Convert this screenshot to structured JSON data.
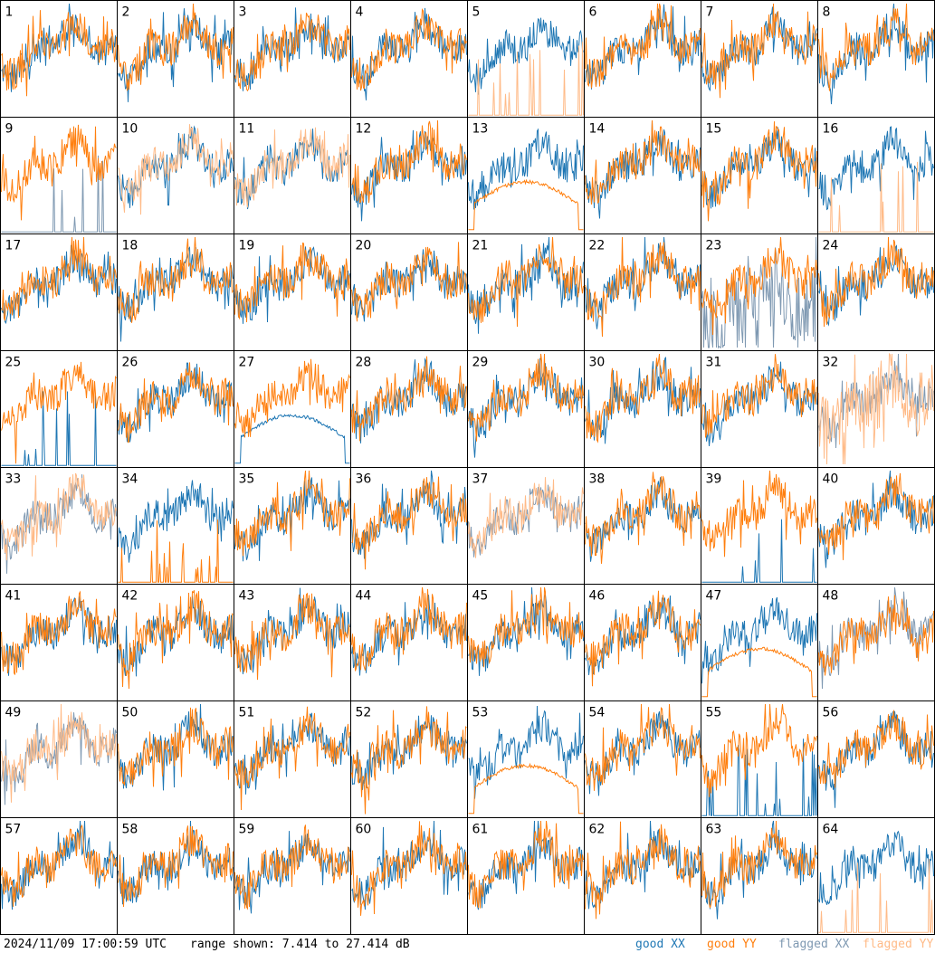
{
  "footer": {
    "timestamp": "2024/11/09 17:00:59 UTC",
    "range": "range shown: 7.414 to 27.414 dB"
  },
  "legend": [
    {
      "name": "good XX",
      "color": "#1f77b4"
    },
    {
      "name": "good YY",
      "color": "#ff7f0e"
    },
    {
      "name": "flagged XX",
      "color": "#7f99b2"
    },
    {
      "name": "flagged YY",
      "color": "#ffbb88"
    }
  ],
  "chart_data": {
    "type": "line",
    "ylim": [
      7.414,
      27.414
    ],
    "ylabel_unit": "dB",
    "grid": false,
    "legend_placement": "bottom-right",
    "panels": [
      {
        "label": "1",
        "xx": "good",
        "yy": "good",
        "pattern": "normal"
      },
      {
        "label": "2",
        "xx": "good",
        "yy": "good",
        "pattern": "normal"
      },
      {
        "label": "3",
        "xx": "good",
        "yy": "good",
        "pattern": "normal"
      },
      {
        "label": "4",
        "xx": "good",
        "yy": "good",
        "pattern": "normal"
      },
      {
        "label": "5",
        "xx": "good",
        "yy": "flagged",
        "pattern": "yy-spikes"
      },
      {
        "label": "6",
        "xx": "good",
        "yy": "good",
        "pattern": "normal"
      },
      {
        "label": "7",
        "xx": "good",
        "yy": "good",
        "pattern": "normal"
      },
      {
        "label": "8",
        "xx": "good",
        "yy": "good",
        "pattern": "normal"
      },
      {
        "label": "9",
        "xx": "flagged",
        "yy": "good",
        "pattern": "xx-spikes"
      },
      {
        "label": "10",
        "xx": "good",
        "yy": "flagged",
        "pattern": "normal"
      },
      {
        "label": "11",
        "xx": "good",
        "yy": "flagged",
        "pattern": "normal"
      },
      {
        "label": "12",
        "xx": "good",
        "yy": "good",
        "pattern": "normal"
      },
      {
        "label": "13",
        "xx": "good",
        "yy": "good",
        "pattern": "yy-smooth"
      },
      {
        "label": "14",
        "xx": "good",
        "yy": "good",
        "pattern": "normal"
      },
      {
        "label": "15",
        "xx": "good",
        "yy": "good",
        "pattern": "normal"
      },
      {
        "label": "16",
        "xx": "good",
        "yy": "flagged",
        "pattern": "yy-spikes"
      },
      {
        "label": "17",
        "xx": "good",
        "yy": "good",
        "pattern": "normal"
      },
      {
        "label": "18",
        "xx": "good",
        "yy": "good",
        "pattern": "normal"
      },
      {
        "label": "19",
        "xx": "good",
        "yy": "good",
        "pattern": "normal"
      },
      {
        "label": "20",
        "xx": "good",
        "yy": "good",
        "pattern": "normal"
      },
      {
        "label": "21",
        "xx": "good",
        "yy": "good",
        "pattern": "normal"
      },
      {
        "label": "22",
        "xx": "good",
        "yy": "good",
        "pattern": "normal"
      },
      {
        "label": "23",
        "xx": "flagged",
        "yy": "good",
        "pattern": "xx-noisy"
      },
      {
        "label": "24",
        "xx": "good",
        "yy": "good",
        "pattern": "normal"
      },
      {
        "label": "25",
        "xx": "good",
        "yy": "good",
        "pattern": "xx-spikes"
      },
      {
        "label": "26",
        "xx": "good",
        "yy": "good",
        "pattern": "normal"
      },
      {
        "label": "27",
        "xx": "good",
        "yy": "good",
        "pattern": "xx-smooth"
      },
      {
        "label": "28",
        "xx": "good",
        "yy": "good",
        "pattern": "normal"
      },
      {
        "label": "29",
        "xx": "good",
        "yy": "good",
        "pattern": "normal"
      },
      {
        "label": "30",
        "xx": "good",
        "yy": "good",
        "pattern": "normal"
      },
      {
        "label": "31",
        "xx": "good",
        "yy": "good",
        "pattern": "normal"
      },
      {
        "label": "32",
        "xx": "flagged",
        "yy": "flagged",
        "pattern": "yy-noisy"
      },
      {
        "label": "33",
        "xx": "flagged",
        "yy": "flagged",
        "pattern": "normal"
      },
      {
        "label": "34",
        "xx": "good",
        "yy": "good",
        "pattern": "yy-spikes"
      },
      {
        "label": "35",
        "xx": "good",
        "yy": "good",
        "pattern": "normal"
      },
      {
        "label": "36",
        "xx": "good",
        "yy": "good",
        "pattern": "normal"
      },
      {
        "label": "37",
        "xx": "flagged",
        "yy": "flagged",
        "pattern": "normal"
      },
      {
        "label": "38",
        "xx": "good",
        "yy": "good",
        "pattern": "normal"
      },
      {
        "label": "39",
        "xx": "good",
        "yy": "good",
        "pattern": "xx-spikes"
      },
      {
        "label": "40",
        "xx": "good",
        "yy": "good",
        "pattern": "normal"
      },
      {
        "label": "41",
        "xx": "good",
        "yy": "good",
        "pattern": "normal"
      },
      {
        "label": "42",
        "xx": "good",
        "yy": "good",
        "pattern": "normal"
      },
      {
        "label": "43",
        "xx": "good",
        "yy": "good",
        "pattern": "normal"
      },
      {
        "label": "44",
        "xx": "good",
        "yy": "good",
        "pattern": "normal"
      },
      {
        "label": "45",
        "xx": "good",
        "yy": "good",
        "pattern": "normal"
      },
      {
        "label": "46",
        "xx": "good",
        "yy": "good",
        "pattern": "normal"
      },
      {
        "label": "47",
        "xx": "good",
        "yy": "good",
        "pattern": "yy-smooth"
      },
      {
        "label": "48",
        "xx": "flagged",
        "yy": "good",
        "pattern": "normal"
      },
      {
        "label": "49",
        "xx": "flagged",
        "yy": "flagged",
        "pattern": "normal"
      },
      {
        "label": "50",
        "xx": "good",
        "yy": "good",
        "pattern": "normal"
      },
      {
        "label": "51",
        "xx": "good",
        "yy": "good",
        "pattern": "normal"
      },
      {
        "label": "52",
        "xx": "good",
        "yy": "good",
        "pattern": "normal"
      },
      {
        "label": "53",
        "xx": "good",
        "yy": "good",
        "pattern": "yy-smooth"
      },
      {
        "label": "54",
        "xx": "good",
        "yy": "good",
        "pattern": "normal"
      },
      {
        "label": "55",
        "xx": "good",
        "yy": "good",
        "pattern": "xx-spikes"
      },
      {
        "label": "56",
        "xx": "good",
        "yy": "good",
        "pattern": "normal"
      },
      {
        "label": "57",
        "xx": "good",
        "yy": "good",
        "pattern": "normal"
      },
      {
        "label": "58",
        "xx": "good",
        "yy": "good",
        "pattern": "normal"
      },
      {
        "label": "59",
        "xx": "good",
        "yy": "good",
        "pattern": "normal"
      },
      {
        "label": "60",
        "xx": "good",
        "yy": "good",
        "pattern": "normal"
      },
      {
        "label": "61",
        "xx": "good",
        "yy": "good",
        "pattern": "normal"
      },
      {
        "label": "62",
        "xx": "good",
        "yy": "good",
        "pattern": "normal"
      },
      {
        "label": "63",
        "xx": "good",
        "yy": "good",
        "pattern": "normal"
      },
      {
        "label": "64",
        "xx": "good",
        "yy": "flagged",
        "pattern": "yy-spikes"
      }
    ]
  }
}
